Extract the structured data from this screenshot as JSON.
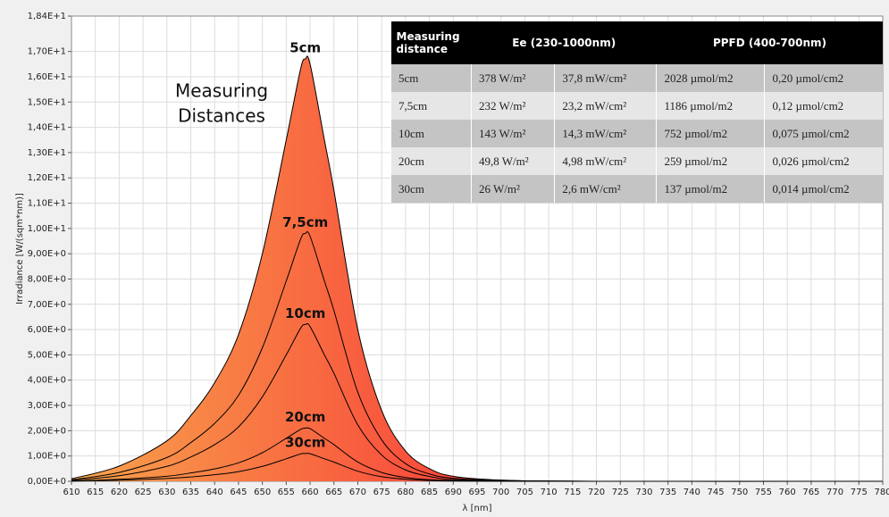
{
  "chart_data": {
    "type": "line",
    "annotation_lines": [
      "Measuring",
      "Distances"
    ],
    "x_label": "λ [nm]",
    "y_label": "Irradiance [W/(sqm*nm)]",
    "x": [
      610,
      620,
      630,
      635,
      640,
      645,
      650,
      655,
      658,
      659,
      660,
      663,
      665,
      670,
      675,
      680,
      685,
      690,
      700,
      720,
      780
    ],
    "series": [
      {
        "name": "5cm",
        "color": "#000000",
        "fill_gradient": [
          "#f7a44c",
          "#f93838"
        ],
        "values": [
          0.1,
          0.6,
          1.6,
          2.6,
          3.9,
          5.8,
          9.0,
          13.5,
          16.3,
          16.7,
          16.5,
          13.5,
          11.5,
          6.0,
          2.8,
          1.2,
          0.5,
          0.2,
          0.05,
          0,
          0
        ]
      },
      {
        "name": "7,5cm",
        "color": "#000000",
        "values": [
          0.06,
          0.35,
          0.94,
          1.53,
          2.29,
          3.4,
          5.28,
          7.92,
          9.57,
          9.8,
          9.69,
          7.92,
          6.75,
          3.52,
          1.64,
          0.7,
          0.29,
          0.12,
          0.03,
          0,
          0
        ]
      },
      {
        "name": "10cm",
        "color": "#000000",
        "values": [
          0.04,
          0.22,
          0.59,
          0.96,
          1.45,
          2.15,
          3.34,
          5.0,
          6.05,
          6.2,
          6.12,
          5.0,
          4.27,
          2.23,
          1.04,
          0.45,
          0.19,
          0.07,
          0.02,
          0,
          0
        ]
      },
      {
        "name": "20cm",
        "color": "#000000",
        "values": [
          0.01,
          0.08,
          0.2,
          0.33,
          0.49,
          0.73,
          1.13,
          1.7,
          2.05,
          2.1,
          2.08,
          1.7,
          1.45,
          0.76,
          0.35,
          0.15,
          0.06,
          0.03,
          0.01,
          0,
          0
        ]
      },
      {
        "name": "30cm",
        "color": "#000000",
        "values": [
          0.01,
          0.04,
          0.11,
          0.17,
          0.26,
          0.38,
          0.59,
          0.89,
          1.08,
          1.1,
          1.09,
          0.89,
          0.76,
          0.4,
          0.18,
          0.08,
          0.03,
          0.01,
          0,
          0,
          0
        ]
      }
    ],
    "xlim": [
      610,
      780
    ],
    "xticks": [
      610,
      615,
      620,
      625,
      630,
      635,
      640,
      645,
      650,
      655,
      660,
      665,
      670,
      675,
      680,
      685,
      690,
      695,
      700,
      705,
      710,
      715,
      720,
      725,
      730,
      735,
      740,
      745,
      750,
      755,
      760,
      765,
      770,
      775,
      780
    ],
    "ylim": [
      0,
      18.4
    ],
    "yticks": [
      {
        "value": 0,
        "label": "0,00E+0"
      },
      {
        "value": 1,
        "label": "1,00E+0"
      },
      {
        "value": 2,
        "label": "2,00E+0"
      },
      {
        "value": 3,
        "label": "3,00E+0"
      },
      {
        "value": 4,
        "label": "4,00E+0"
      },
      {
        "value": 5,
        "label": "5,00E+0"
      },
      {
        "value": 6,
        "label": "6,00E+0"
      },
      {
        "value": 7,
        "label": "7,00E+0"
      },
      {
        "value": 8,
        "label": "8,00E+0"
      },
      {
        "value": 9,
        "label": "9,00E+0"
      },
      {
        "value": 10,
        "label": "1,00E+1"
      },
      {
        "value": 11,
        "label": "1,10E+1"
      },
      {
        "value": 12,
        "label": "1,20E+1"
      },
      {
        "value": 13,
        "label": "1,30E+1"
      },
      {
        "value": 14,
        "label": "1,40E+1"
      },
      {
        "value": 15,
        "label": "1,50E+1"
      },
      {
        "value": 16,
        "label": "1,60E+1"
      },
      {
        "value": 17,
        "label": "1,70E+1"
      },
      {
        "value": 18.4,
        "label": "1,84E+1"
      }
    ],
    "grid": true
  },
  "table": {
    "header": [
      "Measuring distance",
      "Ee  (230-1000nm)",
      "PPFD (400-700nm)"
    ],
    "rows": [
      [
        "5cm",
        "378 W/m²",
        "37,8 mW/cm²",
        "2028 µmol/m2",
        "0,20 µmol/cm2"
      ],
      [
        "7,5cm",
        "232 W/m²",
        "23,2 mW/cm²",
        "1186 µmol/m2",
        "0,12 µmol/cm2"
      ],
      [
        "10cm",
        "143 W/m²",
        "14,3 mW/cm²",
        "752 µmol/m2",
        "0,075 µmol/cm2"
      ],
      [
        "20cm",
        "49,8 W/m²",
        "4,98 mW/cm²",
        "259 µmol/m2",
        "0,026 µmol/cm2"
      ],
      [
        "30cm",
        "26 W/m²",
        "2,6 mW/cm²",
        "137 µmol/m2",
        "0,014 µmol/cm2"
      ]
    ]
  }
}
